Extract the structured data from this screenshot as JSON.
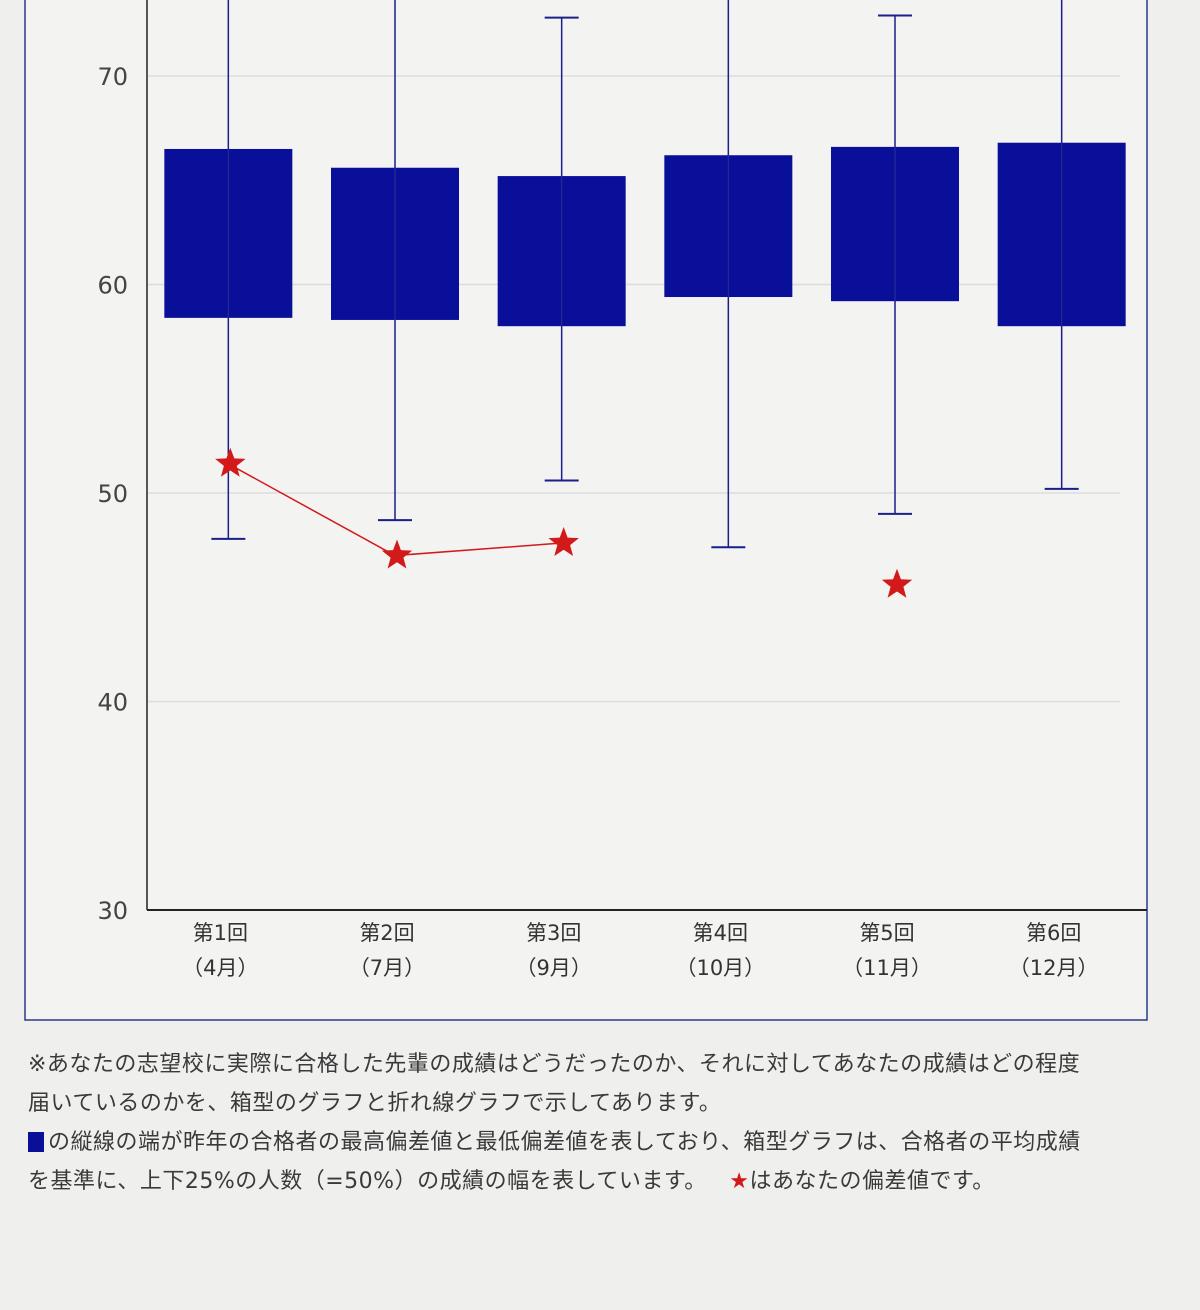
{
  "chart_data": {
    "type": "box",
    "categories": [
      [
        "第1回",
        "（4月）"
      ],
      [
        "第2回",
        "（7月）"
      ],
      [
        "第3回",
        "（9月）"
      ],
      [
        "第4回",
        "（10月）"
      ],
      [
        "第5回",
        "（11月）"
      ],
      [
        "第6回",
        "（12月）"
      ]
    ],
    "yticks": [
      30,
      40,
      50,
      60,
      70
    ],
    "ylim": [
      30,
      73.6
    ],
    "grid": true,
    "box_color": "#0a0f9a",
    "marker_color": "#d21a1a",
    "boxes": [
      {
        "whisker_low": 47.8,
        "q1": 58.4,
        "q3": 66.5,
        "whisker_high": 75
      },
      {
        "whisker_low": 48.7,
        "q1": 58.3,
        "q3": 65.6,
        "whisker_high": 75
      },
      {
        "whisker_low": 50.6,
        "q1": 58.0,
        "q3": 65.2,
        "whisker_high": 72.8
      },
      {
        "whisker_low": 47.4,
        "q1": 59.4,
        "q3": 66.2,
        "whisker_high": 75
      },
      {
        "whisker_low": 49.0,
        "q1": 59.2,
        "q3": 66.6,
        "whisker_high": 72.9
      },
      {
        "whisker_low": 50.2,
        "q1": 58.0,
        "q3": 66.8,
        "whisker_high": 75
      }
    ],
    "your_score": [
      51.4,
      47.0,
      47.6,
      null,
      45.6,
      null
    ],
    "line_connects": [
      0,
      1,
      2
    ]
  },
  "notes": {
    "line1": "※あなたの志望校に実際に合格した先輩の成績はどうだったのか、それに対してあなたの成績はどの程度",
    "line2": "届いているのかを、箱型のグラフと折れ線グラフで示してあります。",
    "line3": "の縦線の端が昨年の合格者の最高偏差値と最低偏差値を表しており、箱型グラフは、合格者の平均成績",
    "line4a": "を基準に、上下25%の人数（=50%）の成績の幅を表しています。",
    "star": "★",
    "line4b": "はあなたの偏差値です。"
  }
}
